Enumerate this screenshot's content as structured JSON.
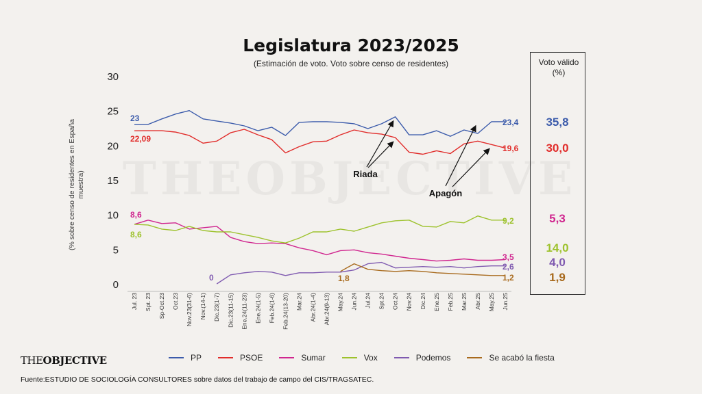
{
  "title": "Legislatura 2023/2025",
  "subtitle": "(Estimación de voto. Voto sobre censo de residentes)",
  "voto_valido_header": "Voto válido\n(%)",
  "watermark": "THEOBJECTIVE",
  "logo": {
    "part1": "THE",
    "part2": "OBJECTIVE"
  },
  "source": "Fuente:ESTUDIO DE SOCIOLOGÍA CONSULTORES sobre datos del trabajo de campo del CIS/TRAGSATEC.",
  "chart_data": {
    "type": "line",
    "title": "Legislatura 2023/2025",
    "ylabel": "(% sobre censo de residentes en España muestra)",
    "ylim": [
      0,
      30
    ],
    "yticks": [
      0,
      5,
      10,
      15,
      20,
      25,
      30
    ],
    "grid": false,
    "legend_position": "bottom",
    "x": [
      "Jul. 23",
      "Spt. 23",
      "Sp-Oct.23",
      "Oct.23",
      "Nov.23(31-6)",
      "Nov.(14-1)",
      "Dic.23(1-7)",
      "Dic.23(11-15)",
      "Ene.24(11-23)",
      "Ene.24(1-5)",
      "Feb.24(1-6)",
      "Feb.24(13-20)",
      "Mar.24",
      "Abr.24(1-4)",
      "Abr.24(9-13)",
      "May.24",
      "Jun.24",
      "Jul.24",
      "Spt.24",
      "Oct.24",
      "Nov.24",
      "Dic.24",
      "Ene.25",
      "Feb.25",
      "Mar.25",
      "Abr.25",
      "May.25",
      "Jun.25"
    ],
    "x_index": [
      0,
      1,
      2,
      3,
      4,
      5,
      6,
      7,
      8,
      9,
      10,
      11,
      12,
      13,
      14,
      15,
      16,
      17,
      18,
      19,
      20,
      21,
      22,
      23,
      24,
      25,
      26,
      27
    ],
    "series": [
      {
        "name": "PP",
        "color": "#3b5bab",
        "x": [
          0,
          1,
          2,
          3,
          4,
          5,
          6,
          7,
          8,
          9,
          10,
          11,
          12,
          13,
          14,
          15,
          16,
          17,
          18,
          19,
          20,
          21,
          22,
          23,
          24,
          25,
          26,
          27
        ],
        "values": [
          23,
          23,
          23.8,
          24.5,
          25,
          23.8,
          23.5,
          23.2,
          22.8,
          22.1,
          22.6,
          21.4,
          23.3,
          23.4,
          23.4,
          23.3,
          23.1,
          22.4,
          23.1,
          24.1,
          21.5,
          21.5,
          22.1,
          21.3,
          22.2,
          21.7,
          23.4,
          23.4
        ],
        "end_label": "23,4",
        "start_label": "23",
        "voto_valido": "35,8"
      },
      {
        "name": "PSOE",
        "color": "#e12c2a",
        "x": [
          0,
          1,
          2,
          3,
          4,
          5,
          6,
          7,
          8,
          9,
          10,
          11,
          12,
          13,
          14,
          15,
          16,
          17,
          18,
          19,
          20,
          21,
          22,
          23,
          24,
          25,
          26,
          27
        ],
        "values": [
          22.09,
          22.1,
          22.1,
          21.9,
          21.4,
          20.3,
          20.6,
          21.8,
          22.3,
          21.5,
          20.8,
          18.9,
          19.8,
          20.5,
          20.6,
          21.5,
          22.2,
          21.8,
          21.6,
          21.1,
          19.0,
          18.7,
          19.2,
          18.8,
          20.2,
          20.6,
          20.1,
          19.6
        ],
        "end_label": "19,6",
        "start_label": "22,09",
        "voto_valido": "30,0"
      },
      {
        "name": "Sumar",
        "color": "#d0268f",
        "x": [
          0,
          1,
          2,
          3,
          4,
          5,
          6,
          7,
          8,
          9,
          10,
          11,
          12,
          13,
          14,
          15,
          16,
          17,
          18,
          19,
          20,
          21,
          22,
          23,
          24,
          25,
          26,
          27
        ],
        "values": [
          8.6,
          9.2,
          8.7,
          8.8,
          7.9,
          8.1,
          8.3,
          6.7,
          6.1,
          5.8,
          5.9,
          5.8,
          5.2,
          4.8,
          4.2,
          4.8,
          4.9,
          4.5,
          4.3,
          4.0,
          3.7,
          3.5,
          3.3,
          3.4,
          3.6,
          3.4,
          3.4,
          3.5
        ],
        "end_label": "3,5",
        "start_label": "8,6",
        "voto_valido": "5,3"
      },
      {
        "name": "Vox",
        "color": "#9dc22c",
        "x": [
          0,
          1,
          2,
          3,
          4,
          5,
          6,
          7,
          8,
          9,
          10,
          11,
          12,
          13,
          14,
          15,
          16,
          17,
          18,
          19,
          20,
          21,
          22,
          23,
          24,
          25,
          26,
          27
        ],
        "values": [
          8.6,
          8.5,
          7.9,
          7.7,
          8.3,
          7.7,
          7.5,
          7.5,
          7.1,
          6.7,
          6.2,
          5.9,
          6.6,
          7.5,
          7.5,
          7.9,
          7.6,
          8.2,
          8.8,
          9.1,
          9.2,
          8.3,
          8.2,
          9.0,
          8.8,
          9.8,
          9.2,
          9.2
        ],
        "end_label": "9,2",
        "start_label": "8,6",
        "voto_valido": "14,0"
      },
      {
        "name": "Podemos",
        "color": "#7f5ab0",
        "x": [
          6,
          7,
          8,
          9,
          10,
          11,
          12,
          13,
          14,
          15,
          16,
          17,
          18,
          19,
          20,
          21,
          22,
          23,
          24,
          25,
          26,
          27
        ],
        "values": [
          0,
          1.3,
          1.6,
          1.8,
          1.7,
          1.2,
          1.6,
          1.6,
          1.7,
          1.7,
          2.0,
          2.9,
          3.1,
          2.3,
          2.4,
          2.5,
          2.4,
          2.5,
          2.3,
          2.5,
          2.6,
          2.6
        ],
        "end_label": "2,6",
        "start_label": "0",
        "voto_valido": "4,0"
      },
      {
        "name": "Se acabó la fiesta",
        "color": "#a86a1d",
        "x": [
          15,
          16,
          17,
          18,
          19,
          20,
          21,
          22,
          23,
          24,
          25,
          26,
          27
        ],
        "values": [
          1.8,
          2.9,
          2.1,
          1.9,
          1.8,
          1.9,
          1.8,
          1.6,
          1.5,
          1.4,
          1.3,
          1.2,
          1.2
        ],
        "end_label": "1,2",
        "start_label": "1,8",
        "voto_valido": "1,9"
      }
    ],
    "annotations": [
      {
        "text": "Riada",
        "points_to": [
          {
            "x": 19,
            "y": 24.1
          },
          {
            "x": 19,
            "y": 21.1
          }
        ]
      },
      {
        "text": "Apagón",
        "points_to": [
          {
            "x": 25,
            "y": 23.4
          },
          {
            "x": 26,
            "y": 20.1
          }
        ]
      }
    ]
  }
}
